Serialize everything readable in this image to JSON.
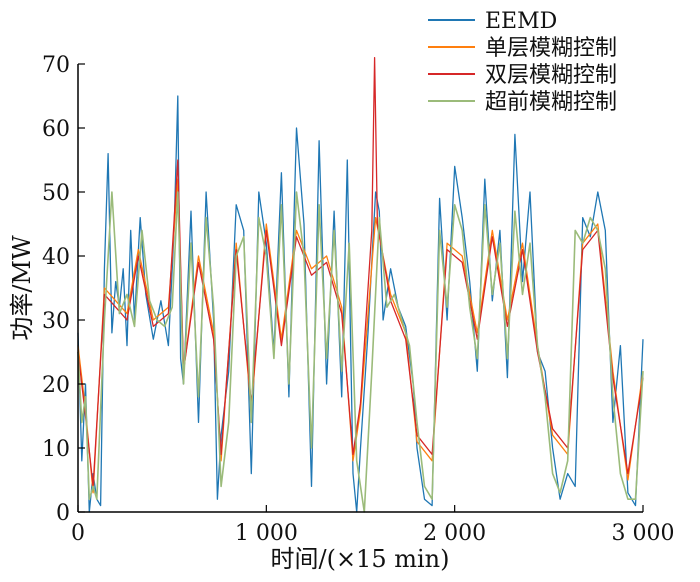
{
  "chart_data": {
    "type": "line",
    "xlabel": "时间/(×15 min)",
    "ylabel": "功率/MW",
    "xlim": [
      0,
      3000
    ],
    "ylim": [
      0,
      70
    ],
    "x_ticks": [
      0,
      1000,
      2000,
      3000
    ],
    "x_tick_labels": [
      "0",
      "1 000",
      "2 000",
      "3 000"
    ],
    "y_ticks": [
      0,
      10,
      20,
      30,
      40,
      50,
      60,
      70
    ],
    "y_tick_labels": [
      "0",
      "10",
      "20",
      "30",
      "40",
      "50",
      "60",
      "70"
    ],
    "legend_position": "top-right",
    "grid": false,
    "series": [
      {
        "name": "EEMD",
        "color": "#1f77b4",
        "x": [
          0,
          20,
          40,
          60,
          80,
          100,
          120,
          140,
          160,
          180,
          200,
          220,
          240,
          260,
          280,
          300,
          330,
          360,
          400,
          440,
          480,
          510,
          530,
          545,
          560,
          600,
          640,
          680,
          720,
          740,
          760,
          800,
          840,
          880,
          920,
          960,
          1000,
          1040,
          1080,
          1120,
          1160,
          1200,
          1240,
          1280,
          1320,
          1360,
          1400,
          1430,
          1460,
          1480,
          1500,
          1540,
          1580,
          1600,
          1620,
          1660,
          1700,
          1740,
          1780,
          1800,
          1840,
          1880,
          1920,
          1960,
          2000,
          2040,
          2080,
          2120,
          2160,
          2200,
          2240,
          2280,
          2320,
          2360,
          2400,
          2440,
          2480,
          2520,
          2560,
          2600,
          2640,
          2680,
          2720,
          2760,
          2800,
          2840,
          2880,
          2920,
          2960,
          3000
        ],
        "y": [
          28,
          8,
          20,
          0,
          6,
          2,
          1,
          38,
          56,
          28,
          36,
          32,
          38,
          26,
          44,
          30,
          46,
          34,
          27,
          33,
          26,
          44,
          65,
          24,
          20,
          47,
          14,
          50,
          30,
          2,
          12,
          22,
          48,
          44,
          6,
          50,
          42,
          25,
          53,
          18,
          60,
          45,
          4,
          58,
          20,
          47,
          18,
          55,
          6,
          0,
          10,
          28,
          50,
          47,
          30,
          38,
          32,
          29,
          20,
          10,
          2,
          1,
          49,
          30,
          54,
          46,
          36,
          22,
          52,
          33,
          44,
          21,
          59,
          36,
          50,
          25,
          22,
          10,
          2,
          6,
          4,
          46,
          43,
          50,
          44,
          14,
          26,
          3,
          1,
          27
        ]
      },
      {
        "name": "单层模糊控制",
        "color": "#ff7f0e",
        "x": [
          0,
          40,
          80,
          140,
          200,
          260,
          320,
          400,
          480,
          530,
          560,
          640,
          720,
          760,
          840,
          920,
          1000,
          1080,
          1160,
          1240,
          1320,
          1400,
          1460,
          1500,
          1580,
          1660,
          1740,
          1800,
          1880,
          1960,
          2040,
          2120,
          2200,
          2280,
          2360,
          2440,
          2520,
          2600,
          2680,
          2760,
          2840,
          2920,
          3000
        ],
        "y": [
          26,
          16,
          3,
          35,
          33,
          31,
          41,
          30,
          32,
          52,
          22,
          40,
          28,
          8,
          42,
          16,
          45,
          27,
          44,
          38,
          40,
          32,
          8,
          16,
          46,
          34,
          28,
          11,
          8,
          42,
          40,
          28,
          44,
          30,
          42,
          26,
          12,
          9,
          42,
          45,
          22,
          5,
          22
        ]
      },
      {
        "name": "双层模糊控制",
        "color": "#d62728",
        "x": [
          0,
          40,
          80,
          140,
          200,
          260,
          320,
          400,
          480,
          530,
          560,
          640,
          720,
          760,
          840,
          920,
          1000,
          1080,
          1160,
          1240,
          1320,
          1400,
          1460,
          1500,
          1560,
          1575,
          1590,
          1660,
          1740,
          1800,
          1880,
          1960,
          2040,
          2120,
          2200,
          2280,
          2360,
          2440,
          2520,
          2600,
          2680,
          2760,
          2840,
          2920,
          3000
        ],
        "y": [
          25,
          15,
          4,
          34,
          32,
          30,
          40,
          29,
          31,
          55,
          22,
          39,
          27,
          9,
          41,
          17,
          44,
          26,
          43,
          37,
          39,
          31,
          9,
          17,
          44,
          71,
          45,
          33,
          27,
          12,
          9,
          41,
          39,
          27,
          43,
          29,
          41,
          25,
          13,
          10,
          41,
          44,
          21,
          6,
          21
        ]
      },
      {
        "name": "超前模糊控制",
        "color": "#9bbb7a",
        "x": [
          0,
          20,
          40,
          60,
          80,
          100,
          140,
          180,
          220,
          260,
          300,
          340,
          380,
          420,
          460,
          500,
          530,
          560,
          600,
          640,
          680,
          720,
          760,
          800,
          840,
          880,
          920,
          960,
          1000,
          1040,
          1080,
          1120,
          1160,
          1200,
          1240,
          1280,
          1320,
          1360,
          1400,
          1440,
          1480,
          1520,
          1560,
          1600,
          1640,
          1680,
          1720,
          1760,
          1800,
          1840,
          1880,
          1920,
          1960,
          2000,
          2040,
          2080,
          2120,
          2160,
          2200,
          2240,
          2280,
          2320,
          2360,
          2400,
          2440,
          2480,
          2520,
          2560,
          2600,
          2640,
          2680,
          2720,
          2760,
          2800,
          2840,
          2880,
          2920,
          2960,
          3000
        ],
        "y": [
          25,
          14,
          18,
          2,
          4,
          2,
          30,
          50,
          31,
          34,
          29,
          44,
          33,
          30,
          29,
          32,
          50,
          20,
          42,
          18,
          46,
          32,
          4,
          14,
          40,
          43,
          14,
          46,
          40,
          24,
          48,
          20,
          50,
          40,
          10,
          48,
          24,
          44,
          22,
          42,
          8,
          0,
          22,
          46,
          32,
          34,
          30,
          26,
          14,
          4,
          2,
          44,
          32,
          48,
          44,
          32,
          24,
          48,
          34,
          42,
          24,
          47,
          34,
          42,
          26,
          18,
          6,
          3,
          8,
          44,
          42,
          46,
          44,
          38,
          18,
          6,
          2,
          2,
          22
        ]
      }
    ]
  }
}
